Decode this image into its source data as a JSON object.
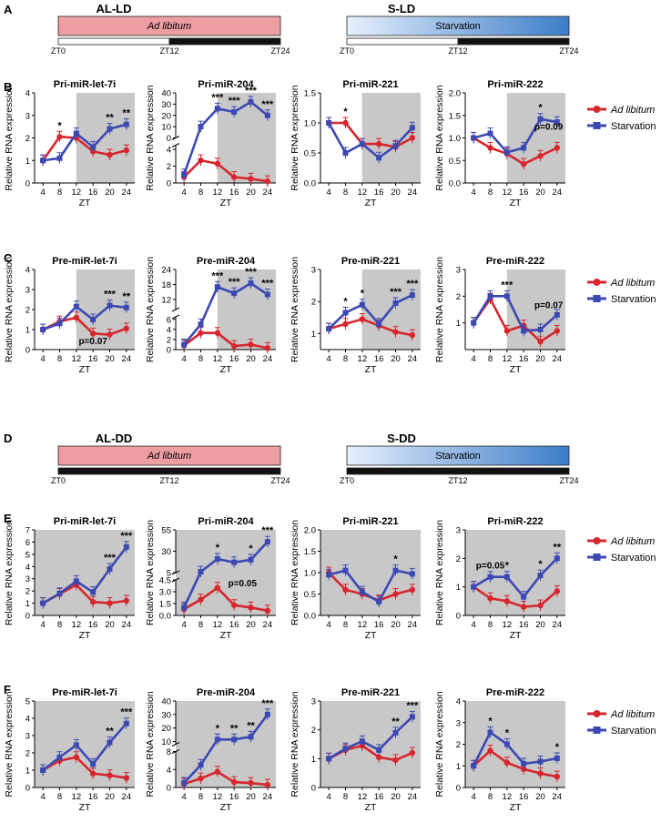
{
  "colors": {
    "ad": "#d7262d",
    "st": "#3b49b3",
    "shade": "#c8c8c8"
  },
  "panels": {
    "A": "A",
    "B": "B",
    "C": "C",
    "D": "D",
    "E": "E",
    "F": "F"
  },
  "conditions": {
    "al_ld": {
      "title": "AL-LD",
      "bar": "Ad libitum"
    },
    "s_ld": {
      "title": "S-LD",
      "bar": "Starvation"
    },
    "al_dd": {
      "title": "AL-DD",
      "bar": "Ad libitum"
    },
    "s_dd": {
      "title": "S-DD",
      "bar": "Starvation"
    },
    "zt": {
      "zt0": "ZT0",
      "zt12": "ZT12",
      "zt24": "ZT24"
    }
  },
  "legend": {
    "ad": "Ad libitum",
    "st": "Starvation"
  },
  "chart_data": [
    {
      "type": "line",
      "row": "B",
      "title": "Pri-miR-let-7i",
      "shade": true,
      "xlabel": "ZT",
      "ylabel": "Relative RNA expression",
      "x": [
        4,
        8,
        12,
        16,
        20,
        24
      ],
      "yticks": [
        "0",
        "1",
        "2",
        "3",
        "4"
      ],
      "ylim": [
        0,
        4
      ],
      "series": [
        {
          "name": "Ad libitum",
          "values": [
            1.0,
            2.05,
            2.0,
            1.4,
            1.25,
            1.45
          ]
        },
        {
          "name": "Starvation",
          "values": [
            1.0,
            1.1,
            2.2,
            1.6,
            2.4,
            2.6
          ]
        }
      ],
      "annotations": [
        {
          "x": 8,
          "text": "*"
        },
        {
          "x": 20,
          "text": "**"
        },
        {
          "x": 24,
          "text": "**"
        }
      ]
    },
    {
      "type": "line",
      "row": "B",
      "title": "Pri-miR-204",
      "shade": true,
      "xlabel": "ZT",
      "ylabel": "Relative RNA expression",
      "x": [
        4,
        8,
        12,
        16,
        20,
        24
      ],
      "broken": true,
      "lower": {
        "ticks": [
          "0",
          "2",
          "4"
        ],
        "range": [
          0,
          4.5
        ]
      },
      "upper": {
        "ticks": [
          "0",
          "10",
          "20",
          "30",
          "40"
        ],
        "range": [
          0,
          40
        ]
      },
      "series": [
        {
          "name": "Ad libitum",
          "values": [
            0.7,
            2.7,
            2.3,
            0.7,
            0.5,
            0.2
          ]
        },
        {
          "name": "Starvation",
          "values": [
            1.0,
            10,
            26,
            23,
            32,
            20
          ]
        }
      ],
      "annotations": [
        {
          "x": 12,
          "text": "***"
        },
        {
          "x": 16,
          "text": "***"
        },
        {
          "x": 20,
          "text": "***"
        },
        {
          "x": 24,
          "text": "***"
        }
      ]
    },
    {
      "type": "line",
      "row": "B",
      "title": "Pri-miR-221",
      "shade": true,
      "xlabel": "ZT",
      "ylabel": "Relative RNA expression",
      "x": [
        4,
        8,
        12,
        16,
        20,
        24
      ],
      "yticks": [
        "0.0",
        "0.5",
        "1.0",
        "1.5"
      ],
      "ylim": [
        0,
        1.5
      ],
      "series": [
        {
          "name": "Ad libitum",
          "values": [
            1.0,
            1.0,
            0.65,
            0.65,
            0.6,
            0.75
          ]
        },
        {
          "name": "Starvation",
          "values": [
            1.0,
            0.5,
            0.65,
            0.42,
            0.62,
            0.92
          ]
        }
      ],
      "annotations": [
        {
          "x": 8,
          "text": "*"
        }
      ]
    },
    {
      "type": "line",
      "row": "B",
      "title": "Pri-miR-222",
      "shade": true,
      "xlabel": "ZT",
      "ylabel": "Relative RNA expression",
      "x": [
        4,
        8,
        12,
        16,
        20,
        24
      ],
      "yticks": [
        "0.0",
        "0.5",
        "1.0",
        "1.5",
        "2.0"
      ],
      "ylim": [
        0,
        2
      ],
      "series": [
        {
          "name": "Ad libitum",
          "values": [
            1.0,
            0.78,
            0.65,
            0.42,
            0.6,
            0.78
          ]
        },
        {
          "name": "Starvation",
          "values": [
            1.0,
            1.1,
            0.68,
            0.78,
            1.42,
            1.35
          ]
        }
      ],
      "annotations": [
        {
          "x": 20,
          "text": "*"
        }
      ],
      "notes": [
        {
          "x": 22,
          "y": 1.18,
          "text": "p=0.09"
        }
      ]
    },
    {
      "type": "line",
      "row": "C",
      "title": "Pre-miR-let-7i",
      "shade": true,
      "xlabel": "ZT",
      "ylabel": "Relative RNA expression",
      "x": [
        4,
        8,
        12,
        16,
        20,
        24
      ],
      "yticks": [
        "0",
        "1",
        "2",
        "3",
        "4"
      ],
      "ylim": [
        0,
        4
      ],
      "series": [
        {
          "name": "Ad libitum",
          "values": [
            1.0,
            1.4,
            1.6,
            0.8,
            0.75,
            1.05
          ]
        },
        {
          "name": "Starvation",
          "values": [
            1.0,
            1.3,
            2.15,
            1.5,
            2.2,
            2.1
          ]
        }
      ],
      "annotations": [
        {
          "x": 20,
          "text": "***"
        },
        {
          "x": 24,
          "text": "**"
        }
      ],
      "notes": [
        {
          "x": 16,
          "y": 0.28,
          "text": "p=0.07"
        }
      ]
    },
    {
      "type": "line",
      "row": "C",
      "title": "Pre-miR-204",
      "shade": true,
      "xlabel": "ZT",
      "ylabel": "Relative RNA expression",
      "x": [
        4,
        8,
        12,
        16,
        20,
        24
      ],
      "broken": true,
      "lower": {
        "ticks": [
          "0",
          "2",
          "4",
          "6"
        ],
        "range": [
          0,
          6.5
        ]
      },
      "upper": {
        "ticks": [
          "12",
          "18",
          "24"
        ],
        "range": [
          8,
          24
        ]
      },
      "series": [
        {
          "name": "Ad libitum",
          "values": [
            0.8,
            3.3,
            3.3,
            0.7,
            1.0,
            0.3
          ]
        },
        {
          "name": "Starvation",
          "values": [
            1.0,
            5.0,
            17,
            14.5,
            18.5,
            14
          ]
        }
      ],
      "annotations": [
        {
          "x": 12,
          "text": "***"
        },
        {
          "x": 16,
          "text": "***"
        },
        {
          "x": 20,
          "text": "***"
        },
        {
          "x": 24,
          "text": "***"
        }
      ]
    },
    {
      "type": "line",
      "row": "C",
      "title": "Pre-miR-221",
      "shade": true,
      "xlabel": "ZT",
      "ylabel": "Relative RNA expression",
      "x": [
        4,
        8,
        12,
        16,
        20,
        24
      ],
      "yticks": [
        "1",
        "2",
        "3"
      ],
      "ylim": [
        0.5,
        3
      ],
      "series": [
        {
          "name": "Ad libitum",
          "values": [
            1.15,
            1.3,
            1.45,
            1.25,
            1.05,
            0.95
          ]
        },
        {
          "name": "Starvation",
          "values": [
            1.15,
            1.65,
            1.9,
            1.3,
            1.95,
            2.2
          ]
        }
      ],
      "annotations": [
        {
          "x": 8,
          "text": "*"
        },
        {
          "x": 12,
          "text": "*"
        },
        {
          "x": 20,
          "text": "***"
        },
        {
          "x": 24,
          "text": "***"
        }
      ]
    },
    {
      "type": "line",
      "row": "C",
      "title": "Pre-miR-222",
      "shade": true,
      "xlabel": "ZT",
      "ylabel": "Relative RNA expression",
      "x": [
        4,
        8,
        12,
        16,
        20,
        24
      ],
      "yticks": [
        "1",
        "2",
        "3"
      ],
      "ylim": [
        0,
        3
      ],
      "series": [
        {
          "name": "Ad libitum",
          "values": [
            1.0,
            1.9,
            0.7,
            0.9,
            0.3,
            0.7
          ]
        },
        {
          "name": "Starvation",
          "values": [
            1.0,
            2.0,
            2.0,
            0.7,
            0.75,
            1.3
          ]
        }
      ],
      "annotations": [
        {
          "x": 12,
          "text": "***"
        }
      ],
      "notes": [
        {
          "x": 22,
          "y": 1.55,
          "text": "p=0.07"
        }
      ]
    },
    {
      "type": "line",
      "row": "E",
      "title": "Pri-miR-let-7i",
      "shade": "full",
      "xlabel": "ZT",
      "ylabel": "Relative RNA expression",
      "x": [
        4,
        8,
        12,
        16,
        20,
        24
      ],
      "yticks": [
        "0",
        "1",
        "2",
        "3",
        "4",
        "5",
        "6",
        "7"
      ],
      "ylim": [
        0,
        7
      ],
      "series": [
        {
          "name": "Ad libitum",
          "values": [
            1.0,
            1.75,
            2.5,
            1.1,
            1.0,
            1.2
          ]
        },
        {
          "name": "Starvation",
          "values": [
            1.0,
            1.8,
            2.8,
            1.9,
            3.8,
            5.6
          ]
        }
      ],
      "annotations": [
        {
          "x": 20,
          "text": "***"
        },
        {
          "x": 24,
          "text": "***"
        }
      ]
    },
    {
      "type": "line",
      "row": "E",
      "title": "Pri-miR-204",
      "shade": "full",
      "xlabel": "ZT",
      "ylabel": "Relative RNA expression",
      "x": [
        4,
        8,
        12,
        16,
        20,
        24
      ],
      "broken": true,
      "lower": {
        "ticks": [
          "0.0",
          "1.5",
          "3.0",
          "4.5"
        ],
        "range": [
          0,
          4.5
        ]
      },
      "upper": {
        "ticks": [
          "5",
          "30",
          "55"
        ],
        "range": [
          5,
          55
        ]
      },
      "series": [
        {
          "name": "Ad libitum",
          "values": [
            0.8,
            2.0,
            3.5,
            1.3,
            1.0,
            0.6
          ]
        },
        {
          "name": "Starvation",
          "values": [
            1.0,
            6.0,
            21,
            17,
            20,
            41
          ]
        }
      ],
      "annotations": [
        {
          "x": 12,
          "text": "*"
        },
        {
          "x": 20,
          "text": "*"
        },
        {
          "x": 24,
          "text": "***"
        }
      ],
      "notes": [
        {
          "x": 18,
          "y": -1,
          "text": "p=0.05"
        }
      ]
    },
    {
      "type": "line",
      "row": "E",
      "title": "Pri-miR-221",
      "shade": "full",
      "xlabel": "ZT",
      "ylabel": "Relative RNA expression",
      "x": [
        4,
        8,
        12,
        16,
        20,
        24
      ],
      "yticks": [
        "0.0",
        "0.5",
        "1.0",
        "1.5",
        "2.0"
      ],
      "ylim": [
        0,
        2
      ],
      "series": [
        {
          "name": "Ad libitum",
          "values": [
            1.0,
            0.6,
            0.5,
            0.35,
            0.5,
            0.6
          ]
        },
        {
          "name": "Starvation",
          "values": [
            0.95,
            1.05,
            0.55,
            0.32,
            1.05,
            0.97
          ]
        }
      ],
      "annotations": [
        {
          "x": 20,
          "text": "*"
        }
      ]
    },
    {
      "type": "line",
      "row": "E",
      "title": "Pri-miR-222",
      "shade": "full",
      "xlabel": "ZT",
      "ylabel": "Relative RNA expression",
      "x": [
        4,
        8,
        12,
        16,
        20,
        24
      ],
      "yticks": [
        "0",
        "1",
        "2",
        "3"
      ],
      "ylim": [
        0,
        3
      ],
      "series": [
        {
          "name": "Ad libitum",
          "values": [
            1.0,
            0.6,
            0.5,
            0.3,
            0.35,
            0.85
          ]
        },
        {
          "name": "Starvation",
          "values": [
            1.0,
            1.35,
            1.35,
            0.65,
            1.4,
            2.0
          ]
        }
      ],
      "annotations": [
        {
          "x": 12,
          "text": "*"
        },
        {
          "x": 20,
          "text": "*"
        },
        {
          "x": 24,
          "text": "**"
        }
      ],
      "notes": [
        {
          "x": 8,
          "y": 1.65,
          "text": "p=0.05"
        }
      ]
    },
    {
      "type": "line",
      "row": "F",
      "title": "Pre-miR-let-7i",
      "shade": "full",
      "xlabel": "ZT",
      "ylabel": "Relative RNA expression",
      "x": [
        4,
        8,
        12,
        16,
        20,
        24
      ],
      "yticks": [
        "0",
        "1",
        "2",
        "3",
        "4",
        "5"
      ],
      "ylim": [
        0,
        5
      ],
      "series": [
        {
          "name": "Ad libitum",
          "values": [
            1.0,
            1.55,
            1.75,
            0.8,
            0.7,
            0.55
          ]
        },
        {
          "name": "Starvation",
          "values": [
            1.0,
            1.75,
            2.45,
            1.35,
            2.6,
            3.7
          ]
        }
      ],
      "annotations": [
        {
          "x": 20,
          "text": "**"
        },
        {
          "x": 24,
          "text": "***"
        }
      ]
    },
    {
      "type": "line",
      "row": "F",
      "title": "Pre-miR-204",
      "shade": "full",
      "xlabel": "ZT",
      "ylabel": "Relative RNA expression",
      "x": [
        4,
        8,
        12,
        16,
        20,
        24
      ],
      "broken": true,
      "lower": {
        "ticks": [
          "0",
          "4",
          "8"
        ],
        "range": [
          0,
          8
        ]
      },
      "upper": {
        "ticks": [
          "10",
          "20",
          "30",
          "40"
        ],
        "range": [
          8,
          40
        ]
      },
      "series": [
        {
          "name": "Ad libitum",
          "values": [
            0.8,
            2.0,
            3.5,
            1.2,
            1.0,
            0.6
          ]
        },
        {
          "name": "Starvation",
          "values": [
            1.0,
            5.0,
            11.5,
            11.5,
            13.5,
            30
          ]
        }
      ],
      "annotations": [
        {
          "x": 12,
          "text": "*"
        },
        {
          "x": 16,
          "text": "**"
        },
        {
          "x": 20,
          "text": "**"
        },
        {
          "x": 24,
          "text": "***"
        }
      ]
    },
    {
      "type": "line",
      "row": "F",
      "title": "Pre-miR-221",
      "shade": "full",
      "xlabel": "ZT",
      "ylabel": "Relative RNA expression",
      "x": [
        4,
        8,
        12,
        16,
        20,
        24
      ],
      "yticks": [
        "0",
        "1",
        "2",
        "3"
      ],
      "ylim": [
        0,
        3
      ],
      "series": [
        {
          "name": "Ad libitum",
          "values": [
            1.0,
            1.3,
            1.45,
            1.05,
            0.95,
            1.2
          ]
        },
        {
          "name": "Starvation",
          "values": [
            1.0,
            1.35,
            1.6,
            1.3,
            1.9,
            2.45
          ]
        }
      ],
      "annotations": [
        {
          "x": 20,
          "text": "**"
        },
        {
          "x": 24,
          "text": "***"
        }
      ]
    },
    {
      "type": "line",
      "row": "F",
      "title": "Pre-miR-222",
      "shade": "full",
      "xlabel": "ZT",
      "ylabel": "Relative RNA expression",
      "x": [
        4,
        8,
        12,
        16,
        20,
        24
      ],
      "yticks": [
        "0",
        "1",
        "2",
        "3",
        "4"
      ],
      "ylim": [
        0,
        4
      ],
      "series": [
        {
          "name": "Ad libitum",
          "values": [
            1.0,
            1.7,
            1.15,
            0.85,
            0.65,
            0.5
          ]
        },
        {
          "name": "Starvation",
          "values": [
            1.0,
            2.55,
            2.0,
            1.1,
            1.2,
            1.35
          ]
        }
      ],
      "annotations": [
        {
          "x": 8,
          "text": "*"
        },
        {
          "x": 12,
          "text": "*"
        },
        {
          "x": 24,
          "text": "*"
        }
      ]
    }
  ]
}
